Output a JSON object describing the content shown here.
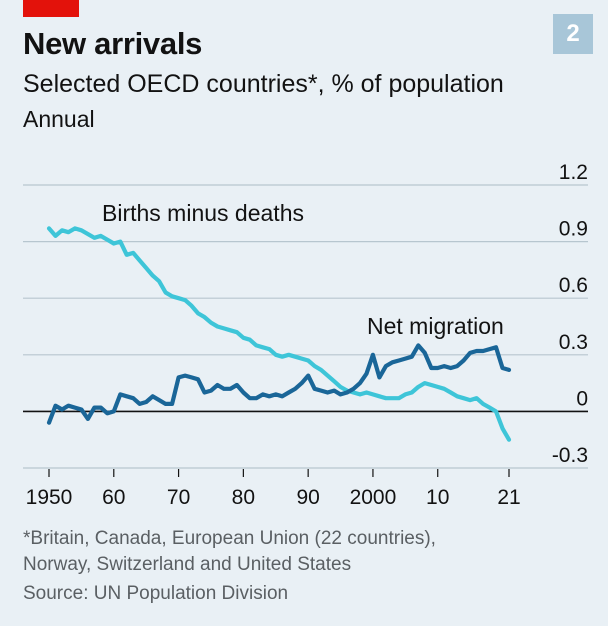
{
  "header": {
    "chart_number": "2",
    "title": "New arrivals",
    "subtitle": "Selected OECD countries*, % of population",
    "frequency": "Annual"
  },
  "footer": {
    "footnote_line1": "*Britain, Canada, European Union (22 countries),",
    "footnote_line2": "Norway, Switzerland and United States",
    "source": "Source: UN Population Division"
  },
  "colors": {
    "background": "#e9f0f5",
    "gridline": "#b7c6cf",
    "zero_line": "#121212",
    "births_minus_deaths": "#3ec5d8",
    "net_migration": "#1a6698",
    "brand_red": "#e3120b"
  },
  "chart_data": {
    "type": "line",
    "title": "New arrivals",
    "subtitle": "Selected OECD countries*, % of population",
    "xlabel": "",
    "ylabel": "",
    "xlim": [
      1950,
      2021
    ],
    "ylim": [
      -0.3,
      1.2
    ],
    "y_ticks": [
      1.2,
      0.9,
      0.6,
      0.3,
      0,
      -0.3
    ],
    "y_tick_labels": [
      "1.2",
      "0.9",
      "0.6",
      "0.3",
      "0",
      "-0.3"
    ],
    "x_ticks": [
      1950,
      1960,
      1970,
      1980,
      1990,
      2000,
      2010,
      2021
    ],
    "x_tick_labels": [
      "1950",
      "60",
      "70",
      "80",
      "90",
      "2000",
      "10",
      "21"
    ],
    "grid": true,
    "y_axis_side": "right",
    "series": [
      {
        "name": "Births minus deaths",
        "color": "#3ec5d8",
        "points": [
          [
            1950,
            0.97
          ],
          [
            1951,
            0.93
          ],
          [
            1952,
            0.96
          ],
          [
            1953,
            0.95
          ],
          [
            1954,
            0.97
          ],
          [
            1955,
            0.96
          ],
          [
            1956,
            0.94
          ],
          [
            1957,
            0.92
          ],
          [
            1958,
            0.93
          ],
          [
            1959,
            0.91
          ],
          [
            1960,
            0.89
          ],
          [
            1961,
            0.9
          ],
          [
            1962,
            0.83
          ],
          [
            1963,
            0.84
          ],
          [
            1964,
            0.8
          ],
          [
            1965,
            0.76
          ],
          [
            1966,
            0.72
          ],
          [
            1967,
            0.69
          ],
          [
            1968,
            0.63
          ],
          [
            1969,
            0.61
          ],
          [
            1970,
            0.6
          ],
          [
            1971,
            0.59
          ],
          [
            1972,
            0.56
          ],
          [
            1973,
            0.52
          ],
          [
            1974,
            0.5
          ],
          [
            1975,
            0.47
          ],
          [
            1976,
            0.45
          ],
          [
            1977,
            0.44
          ],
          [
            1978,
            0.43
          ],
          [
            1979,
            0.42
          ],
          [
            1980,
            0.39
          ],
          [
            1981,
            0.38
          ],
          [
            1982,
            0.35
          ],
          [
            1983,
            0.34
          ],
          [
            1984,
            0.33
          ],
          [
            1985,
            0.3
          ],
          [
            1986,
            0.29
          ],
          [
            1987,
            0.3
          ],
          [
            1988,
            0.29
          ],
          [
            1989,
            0.28
          ],
          [
            1990,
            0.27
          ],
          [
            1991,
            0.24
          ],
          [
            1992,
            0.22
          ],
          [
            1993,
            0.19
          ],
          [
            1994,
            0.16
          ],
          [
            1995,
            0.13
          ],
          [
            1996,
            0.11
          ],
          [
            1997,
            0.1
          ],
          [
            1998,
            0.09
          ],
          [
            1999,
            0.1
          ],
          [
            2000,
            0.09
          ],
          [
            2001,
            0.08
          ],
          [
            2002,
            0.07
          ],
          [
            2003,
            0.07
          ],
          [
            2004,
            0.07
          ],
          [
            2005,
            0.09
          ],
          [
            2006,
            0.1
          ],
          [
            2007,
            0.13
          ],
          [
            2008,
            0.15
          ],
          [
            2009,
            0.14
          ],
          [
            2010,
            0.13
          ],
          [
            2011,
            0.12
          ],
          [
            2012,
            0.1
          ],
          [
            2013,
            0.08
          ],
          [
            2014,
            0.07
          ],
          [
            2015,
            0.06
          ],
          [
            2016,
            0.07
          ],
          [
            2017,
            0.04
          ],
          [
            2018,
            0.02
          ],
          [
            2019,
            0.0
          ],
          [
            2020,
            -0.09
          ],
          [
            2021,
            -0.15
          ]
        ]
      },
      {
        "name": "Net migration",
        "color": "#1a6698",
        "points": [
          [
            1950,
            -0.06
          ],
          [
            1951,
            0.03
          ],
          [
            1952,
            0.01
          ],
          [
            1953,
            0.03
          ],
          [
            1954,
            0.02
          ],
          [
            1955,
            0.01
          ],
          [
            1956,
            -0.04
          ],
          [
            1957,
            0.02
          ],
          [
            1958,
            0.02
          ],
          [
            1959,
            -0.01
          ],
          [
            1960,
            0.0
          ],
          [
            1961,
            0.09
          ],
          [
            1962,
            0.08
          ],
          [
            1963,
            0.07
          ],
          [
            1964,
            0.04
          ],
          [
            1965,
            0.05
          ],
          [
            1966,
            0.08
          ],
          [
            1967,
            0.06
          ],
          [
            1968,
            0.04
          ],
          [
            1969,
            0.04
          ],
          [
            1970,
            0.18
          ],
          [
            1971,
            0.19
          ],
          [
            1972,
            0.18
          ],
          [
            1973,
            0.17
          ],
          [
            1974,
            0.1
          ],
          [
            1975,
            0.11
          ],
          [
            1976,
            0.14
          ],
          [
            1977,
            0.12
          ],
          [
            1978,
            0.12
          ],
          [
            1979,
            0.14
          ],
          [
            1980,
            0.1
          ],
          [
            1981,
            0.07
          ],
          [
            1982,
            0.07
          ],
          [
            1983,
            0.09
          ],
          [
            1984,
            0.08
          ],
          [
            1985,
            0.09
          ],
          [
            1986,
            0.08
          ],
          [
            1987,
            0.1
          ],
          [
            1988,
            0.12
          ],
          [
            1989,
            0.15
          ],
          [
            1990,
            0.19
          ],
          [
            1991,
            0.12
          ],
          [
            1992,
            0.11
          ],
          [
            1993,
            0.1
          ],
          [
            1994,
            0.11
          ],
          [
            1995,
            0.09
          ],
          [
            1996,
            0.1
          ],
          [
            1997,
            0.12
          ],
          [
            1998,
            0.15
          ],
          [
            1999,
            0.2
          ],
          [
            2000,
            0.3
          ],
          [
            2001,
            0.18
          ],
          [
            2002,
            0.24
          ],
          [
            2003,
            0.26
          ],
          [
            2004,
            0.27
          ],
          [
            2005,
            0.28
          ],
          [
            2006,
            0.29
          ],
          [
            2007,
            0.35
          ],
          [
            2008,
            0.31
          ],
          [
            2009,
            0.23
          ],
          [
            2010,
            0.23
          ],
          [
            2011,
            0.24
          ],
          [
            2012,
            0.23
          ],
          [
            2013,
            0.24
          ],
          [
            2014,
            0.27
          ],
          [
            2015,
            0.31
          ],
          [
            2016,
            0.32
          ],
          [
            2017,
            0.32
          ],
          [
            2018,
            0.33
          ],
          [
            2019,
            0.34
          ],
          [
            2020,
            0.23
          ],
          [
            2021,
            0.22
          ]
        ]
      }
    ],
    "annotations": [
      {
        "text": "Births minus deaths",
        "series": "Births minus deaths"
      },
      {
        "text": "Net migration",
        "series": "Net migration"
      }
    ]
  }
}
